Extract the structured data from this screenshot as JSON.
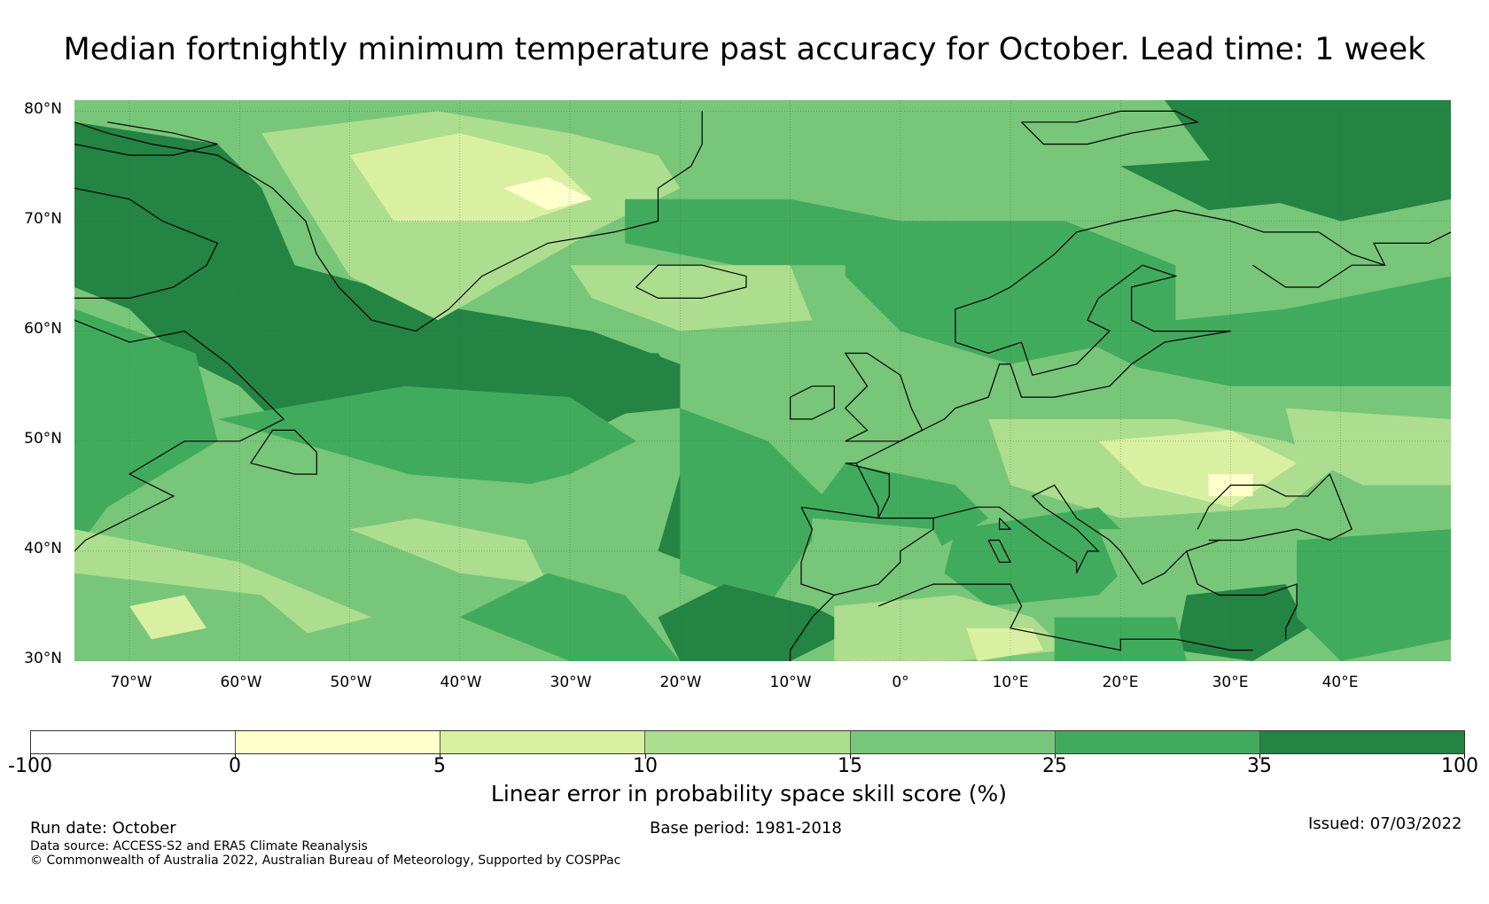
{
  "title": "Median fortnightly minimum temperature past accuracy for October. Lead time: 1 week",
  "map": {
    "lat_labels": [
      "80°N",
      "70°N",
      "60°N",
      "50°N",
      "40°N",
      "30°N"
    ],
    "lon_labels": [
      "70°W",
      "60°W",
      "50°W",
      "40°W",
      "30°W",
      "20°W",
      "10°W",
      "0°",
      "10°E",
      "20°E",
      "30°E",
      "40°E"
    ],
    "lon_range": [
      -75,
      50
    ],
    "lat_range": [
      30,
      81
    ]
  },
  "colorbar": {
    "ticks": [
      "-100",
      "0",
      "5",
      "10",
      "15",
      "25",
      "35",
      "100"
    ],
    "colors": [
      "#ffffff",
      "#ffffcc",
      "#d9f0a3",
      "#addd8e",
      "#78c679",
      "#41ab5d",
      "#238443"
    ],
    "label": "Linear error in probability space skill score (%)"
  },
  "footer": {
    "run_date": "Run date: October",
    "base_period": "Base period: 1981-2018",
    "issued": "Issued: 07/03/2022",
    "source": "Data source: ACCESS-S2 and ERA5 Climate Reanalysis",
    "copyright": "© Commonwealth of Australia 2022, Australian Bureau of Meteorology, Supported by COSPPac"
  }
}
